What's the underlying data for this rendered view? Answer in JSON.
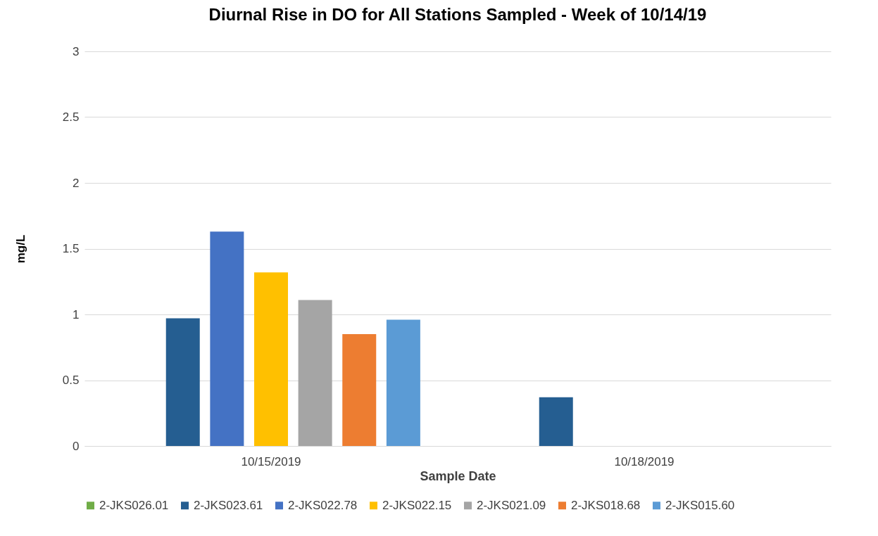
{
  "chart_data": {
    "type": "bar",
    "title": "Diurnal Rise in DO for All Stations Sampled - Week of 10/14/19",
    "xlabel": "Sample Date",
    "ylabel": "mg/L",
    "categories": [
      "10/15/2019",
      "10/18/2019"
    ],
    "series": [
      {
        "name": "2-JKS026.01",
        "color": "#70ad47",
        "values": [
          null,
          null
        ]
      },
      {
        "name": "2-JKS023.61",
        "color": "#255e91",
        "values": [
          0.97,
          0.37
        ]
      },
      {
        "name": "2-JKS022.78",
        "color": "#4472c4",
        "values": [
          1.63,
          null
        ]
      },
      {
        "name": "2-JKS022.15",
        "color": "#ffc000",
        "values": [
          1.32,
          null
        ]
      },
      {
        "name": "2-JKS021.09",
        "color": "#a5a5a5",
        "values": [
          1.11,
          null
        ]
      },
      {
        "name": "2-JKS018.68",
        "color": "#ed7d31",
        "values": [
          0.85,
          null
        ]
      },
      {
        "name": "2-JKS015.60",
        "color": "#5b9bd5",
        "values": [
          0.96,
          null
        ]
      }
    ],
    "ylim": [
      0,
      3
    ],
    "yticks": [
      0,
      0.5,
      1,
      1.5,
      2,
      2.5,
      3
    ],
    "grid": "y",
    "legend": "bottom"
  }
}
